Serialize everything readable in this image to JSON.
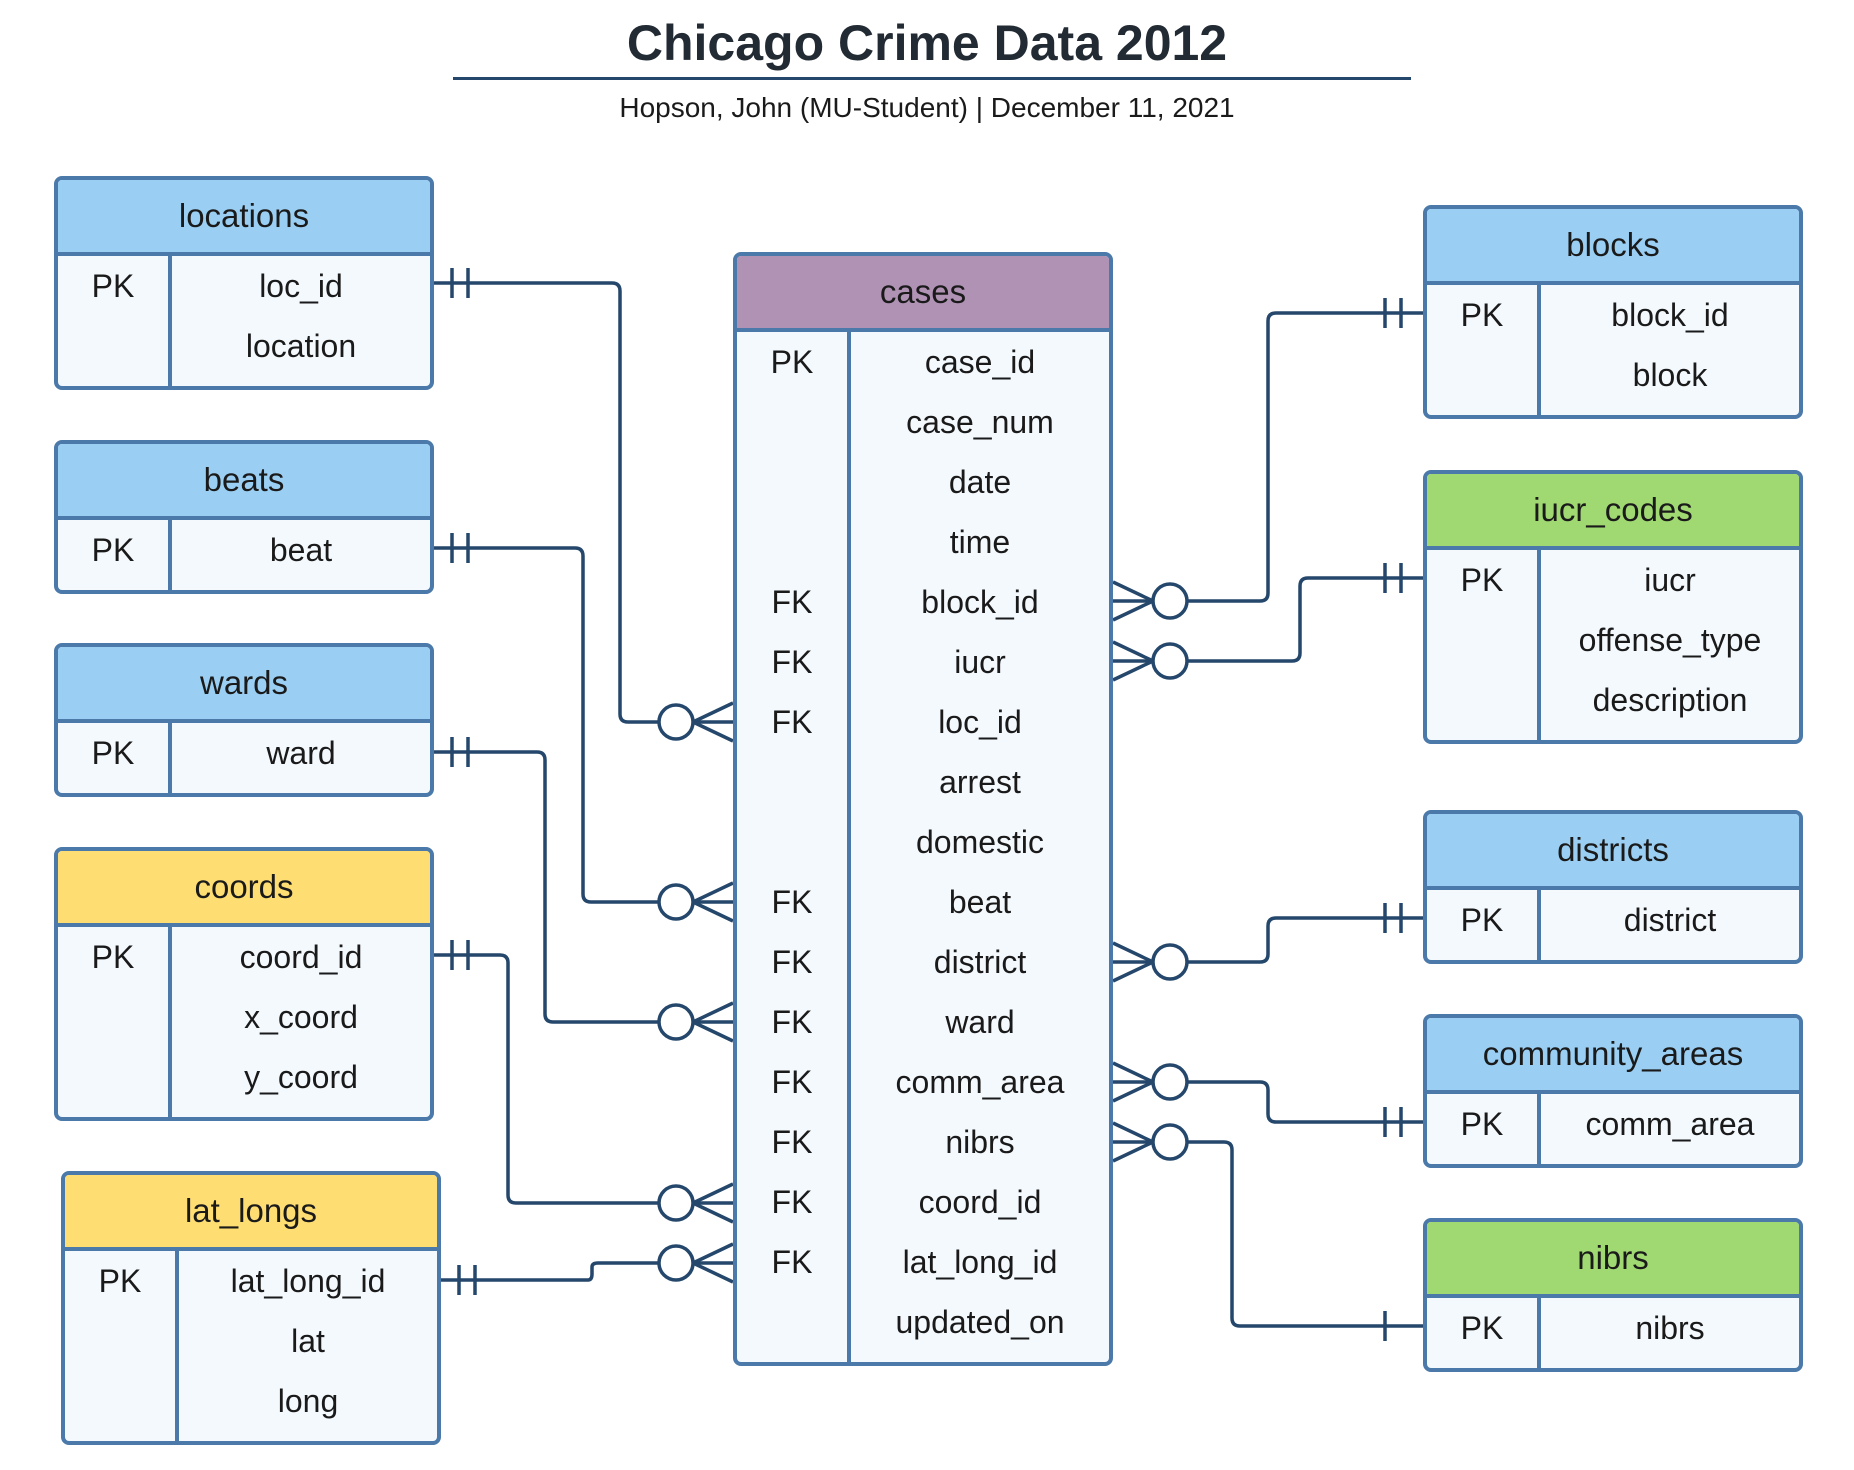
{
  "header": {
    "title": "Chicago Crime Data 2012",
    "subtitle": "Hopson, John (MU-Student)  |  December 11, 2021"
  },
  "colors": {
    "border": "#4a79aa",
    "line": "#24476b",
    "body_fill": "#f4f9fd",
    "header_blue": "#9acff3",
    "header_green": "#a0d872",
    "header_yellow": "#fedd73",
    "header_purple": "#b092b5"
  },
  "entities": [
    {
      "name": "locations",
      "color": "#9acff3",
      "fields": [
        {
          "key": "PK",
          "name": "loc_id"
        },
        {
          "key": "",
          "name": "location"
        }
      ]
    },
    {
      "name": "beats",
      "color": "#9acff3",
      "fields": [
        {
          "key": "PK",
          "name": "beat"
        }
      ]
    },
    {
      "name": "wards",
      "color": "#9acff3",
      "fields": [
        {
          "key": "PK",
          "name": "ward"
        }
      ]
    },
    {
      "name": "coords",
      "color": "#fedd73",
      "fields": [
        {
          "key": "PK",
          "name": "coord_id"
        },
        {
          "key": "",
          "name": "x_coord"
        },
        {
          "key": "",
          "name": "y_coord"
        }
      ]
    },
    {
      "name": "lat_longs",
      "color": "#fedd73",
      "fields": [
        {
          "key": "PK",
          "name": "lat_long_id"
        },
        {
          "key": "",
          "name": "lat"
        },
        {
          "key": "",
          "name": "long"
        }
      ]
    },
    {
      "name": "cases",
      "color": "#b092b5",
      "fields": [
        {
          "key": "PK",
          "name": "case_id"
        },
        {
          "key": "",
          "name": "case_num"
        },
        {
          "key": "",
          "name": "date"
        },
        {
          "key": "",
          "name": "time"
        },
        {
          "key": "FK",
          "name": "block_id"
        },
        {
          "key": "FK",
          "name": "iucr"
        },
        {
          "key": "FK",
          "name": "loc_id"
        },
        {
          "key": "",
          "name": "arrest"
        },
        {
          "key": "",
          "name": "domestic"
        },
        {
          "key": "FK",
          "name": "beat"
        },
        {
          "key": "FK",
          "name": "district"
        },
        {
          "key": "FK",
          "name": "ward"
        },
        {
          "key": "FK",
          "name": "comm_area"
        },
        {
          "key": "FK",
          "name": "nibrs"
        },
        {
          "key": "FK",
          "name": "coord_id"
        },
        {
          "key": "FK",
          "name": "lat_long_id"
        },
        {
          "key": "",
          "name": "updated_on"
        }
      ]
    },
    {
      "name": "blocks",
      "color": "#9acff3",
      "fields": [
        {
          "key": "PK",
          "name": "block_id"
        },
        {
          "key": "",
          "name": "block"
        }
      ]
    },
    {
      "name": "iucr_codes",
      "color": "#a0d872",
      "fields": [
        {
          "key": "PK",
          "name": "iucr"
        },
        {
          "key": "",
          "name": "offense_type"
        },
        {
          "key": "",
          "name": "description"
        }
      ]
    },
    {
      "name": "districts",
      "color": "#9acff3",
      "fields": [
        {
          "key": "PK",
          "name": "district"
        }
      ]
    },
    {
      "name": "community_areas",
      "color": "#9acff3",
      "fields": [
        {
          "key": "PK",
          "name": "comm_area"
        }
      ]
    },
    {
      "name": "nibrs",
      "color": "#a0d872",
      "fields": [
        {
          "key": "PK",
          "name": "nibrs"
        }
      ]
    }
  ],
  "relationships": [
    {
      "from": "locations",
      "to": "cases",
      "field": "loc_id",
      "from_end": "one-and-only-one",
      "to_end": "zero-or-many"
    },
    {
      "from": "beats",
      "to": "cases",
      "field": "beat",
      "from_end": "one-and-only-one",
      "to_end": "zero-or-many"
    },
    {
      "from": "wards",
      "to": "cases",
      "field": "ward",
      "from_end": "one-and-only-one",
      "to_end": "zero-or-many"
    },
    {
      "from": "coords",
      "to": "cases",
      "field": "coord_id",
      "from_end": "one-and-only-one",
      "to_end": "zero-or-many"
    },
    {
      "from": "lat_longs",
      "to": "cases",
      "field": "lat_long_id",
      "from_end": "one-and-only-one",
      "to_end": "zero-or-many"
    },
    {
      "from": "blocks",
      "to": "cases",
      "field": "block_id",
      "from_end": "one-and-only-one",
      "to_end": "zero-or-many"
    },
    {
      "from": "iucr_codes",
      "to": "cases",
      "field": "iucr",
      "from_end": "one-and-only-one",
      "to_end": "zero-or-many"
    },
    {
      "from": "districts",
      "to": "cases",
      "field": "district",
      "from_end": "one-and-only-one",
      "to_end": "zero-or-many"
    },
    {
      "from": "community_areas",
      "to": "cases",
      "field": "comm_area",
      "from_end": "one-and-only-one",
      "to_end": "zero-or-many"
    },
    {
      "from": "nibrs",
      "to": "cases",
      "field": "nibrs",
      "from_end": "one",
      "to_end": "zero-or-many"
    }
  ]
}
